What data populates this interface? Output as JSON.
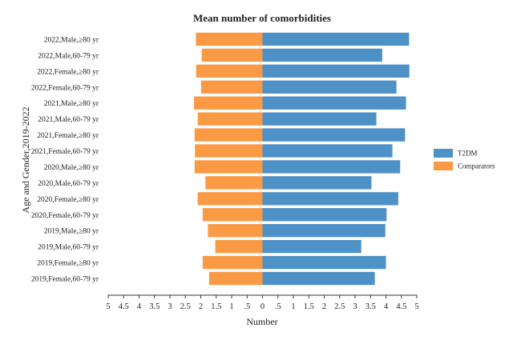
{
  "chart_data": {
    "type": "bar",
    "orientation": "horizontal-butterfly",
    "title": "Mean number of comorbidities",
    "xlabel": "Number",
    "ylabel": "Age and Gender,2019-2022",
    "xlim": [
      -5,
      5
    ],
    "x_ticks": [
      -5,
      -4.5,
      -4,
      -3.5,
      -3,
      -2.5,
      -2,
      -1.5,
      -1,
      -0.5,
      0,
      0.5,
      1,
      1.5,
      2,
      2.5,
      3,
      3.5,
      4,
      4.5,
      5
    ],
    "x_tick_labels": [
      "5",
      "4.5",
      "4",
      "3.5",
      "3",
      "2.5",
      "2",
      "1.5",
      "1",
      ".5",
      "0",
      ".5",
      "1",
      "1.5",
      "2",
      "2.5",
      "3",
      "3.5",
      "4",
      "4.5",
      "5"
    ],
    "categories": [
      "2022,Male,≥80 yr",
      "2022,Male,60-79 yr",
      "2022,Female,≥80 yr",
      "2022,Female,60-79 yr",
      "2021,Male,≥80 yr",
      "2021,Male,60-79 yr",
      "2021,Female,≥80 yr",
      "2021,Female,60-79 yr",
      "2020,Male,≥80 yr",
      "2020,Male,60-79 yr",
      "2020,Female,≥80 yr",
      "2020,Female,60-79 yr",
      "2019,Male,≥80 yr",
      "2019,Male,60-79 yr",
      "2019,Female,≥80 yr",
      "2019,Female,60-79 yr"
    ],
    "series": [
      {
        "name": "T2DM",
        "color": "#4e91c6",
        "side": "right",
        "values": [
          4.75,
          3.88,
          4.76,
          4.34,
          4.65,
          3.69,
          4.62,
          4.21,
          4.46,
          3.53,
          4.4,
          4.02,
          3.98,
          3.2,
          4.0,
          3.64
        ]
      },
      {
        "name": "Comparators",
        "color": "#fa9a45",
        "side": "left",
        "values": [
          2.16,
          1.97,
          2.15,
          1.99,
          2.22,
          2.1,
          2.2,
          2.19,
          2.2,
          1.85,
          2.1,
          1.94,
          1.77,
          1.53,
          1.94,
          1.73
        ]
      }
    ],
    "legend_position": "right"
  }
}
